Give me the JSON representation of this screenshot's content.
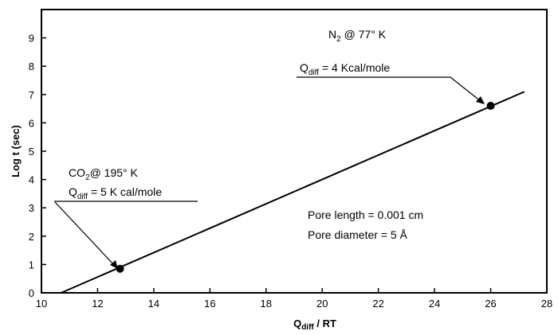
{
  "chart_data": {
    "type": "line",
    "xlabel_main": "Q",
    "xlabel_sub": "diff",
    "xlabel_rest": " / RT",
    "ylabel": "Log t (sec)",
    "xlim": [
      10,
      28
    ],
    "ylim": [
      0,
      10
    ],
    "x_ticks": [
      "10",
      "12",
      "14",
      "16",
      "18",
      "20",
      "22",
      "24",
      "26",
      "28"
    ],
    "y_ticks": [
      "0",
      "1",
      "2",
      "3",
      "4",
      "5",
      "6",
      "7",
      "8",
      "9"
    ],
    "line": [
      {
        "x": 10.7,
        "y": 0.0
      },
      {
        "x": 27.2,
        "y": 7.1
      }
    ],
    "points": [
      {
        "label": "CO2 @ 195 K",
        "x": 12.8,
        "y": 0.85
      },
      {
        "label": "N2 @ 77 K",
        "x": 26.0,
        "y": 6.6
      }
    ],
    "annotations": {
      "co2_title_a": "CO",
      "co2_title_sub": "2",
      "co2_title_b": "@ 195° K",
      "co2_q_main": "Q",
      "co2_q_sub": "diff",
      "co2_q_rest": " = 5 K cal/mole",
      "n2_title_a": "N",
      "n2_title_sub": "2",
      "n2_title_b": " @ 77° K",
      "n2_q_main": "Q",
      "n2_q_sub": "diff",
      "n2_q_rest": " = 4 Kcal/mole",
      "pore_length": "Pore length = 0.001 cm",
      "pore_diameter": "Pore diameter = 5 Å"
    }
  }
}
